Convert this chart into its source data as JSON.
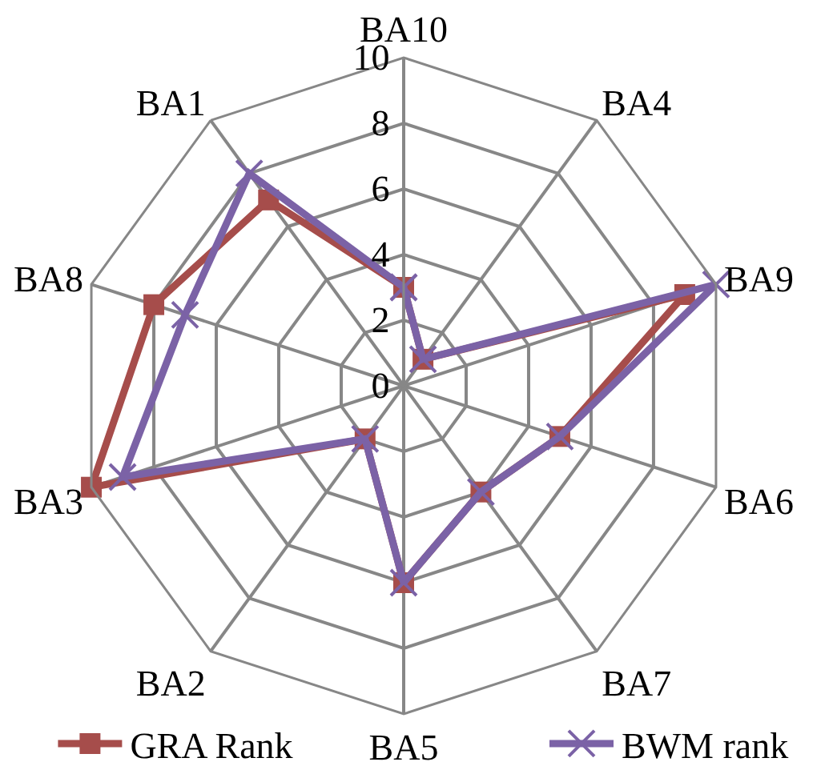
{
  "chart_data": {
    "type": "radar",
    "categories": [
      "BA10",
      "BA4",
      "BA9",
      "BA6",
      "BA7",
      "BA5",
      "BA2",
      "BA3",
      "BA8",
      "BA1"
    ],
    "series": [
      {
        "name": "GRA Rank",
        "color": "#a64d4b",
        "marker": "square",
        "values": [
          3,
          1,
          9,
          5,
          4,
          6,
          2,
          10,
          8,
          7
        ]
      },
      {
        "name": "BWM rank",
        "color": "#7b62a6",
        "marker": "cross",
        "values": [
          3,
          1,
          10,
          5,
          4,
          6,
          2,
          9,
          7,
          8
        ]
      }
    ],
    "ylim": [
      0,
      10
    ],
    "yticks": [
      0,
      2,
      4,
      6,
      8,
      10
    ],
    "grid": true,
    "legend": "bottom",
    "line_style": "solid"
  }
}
